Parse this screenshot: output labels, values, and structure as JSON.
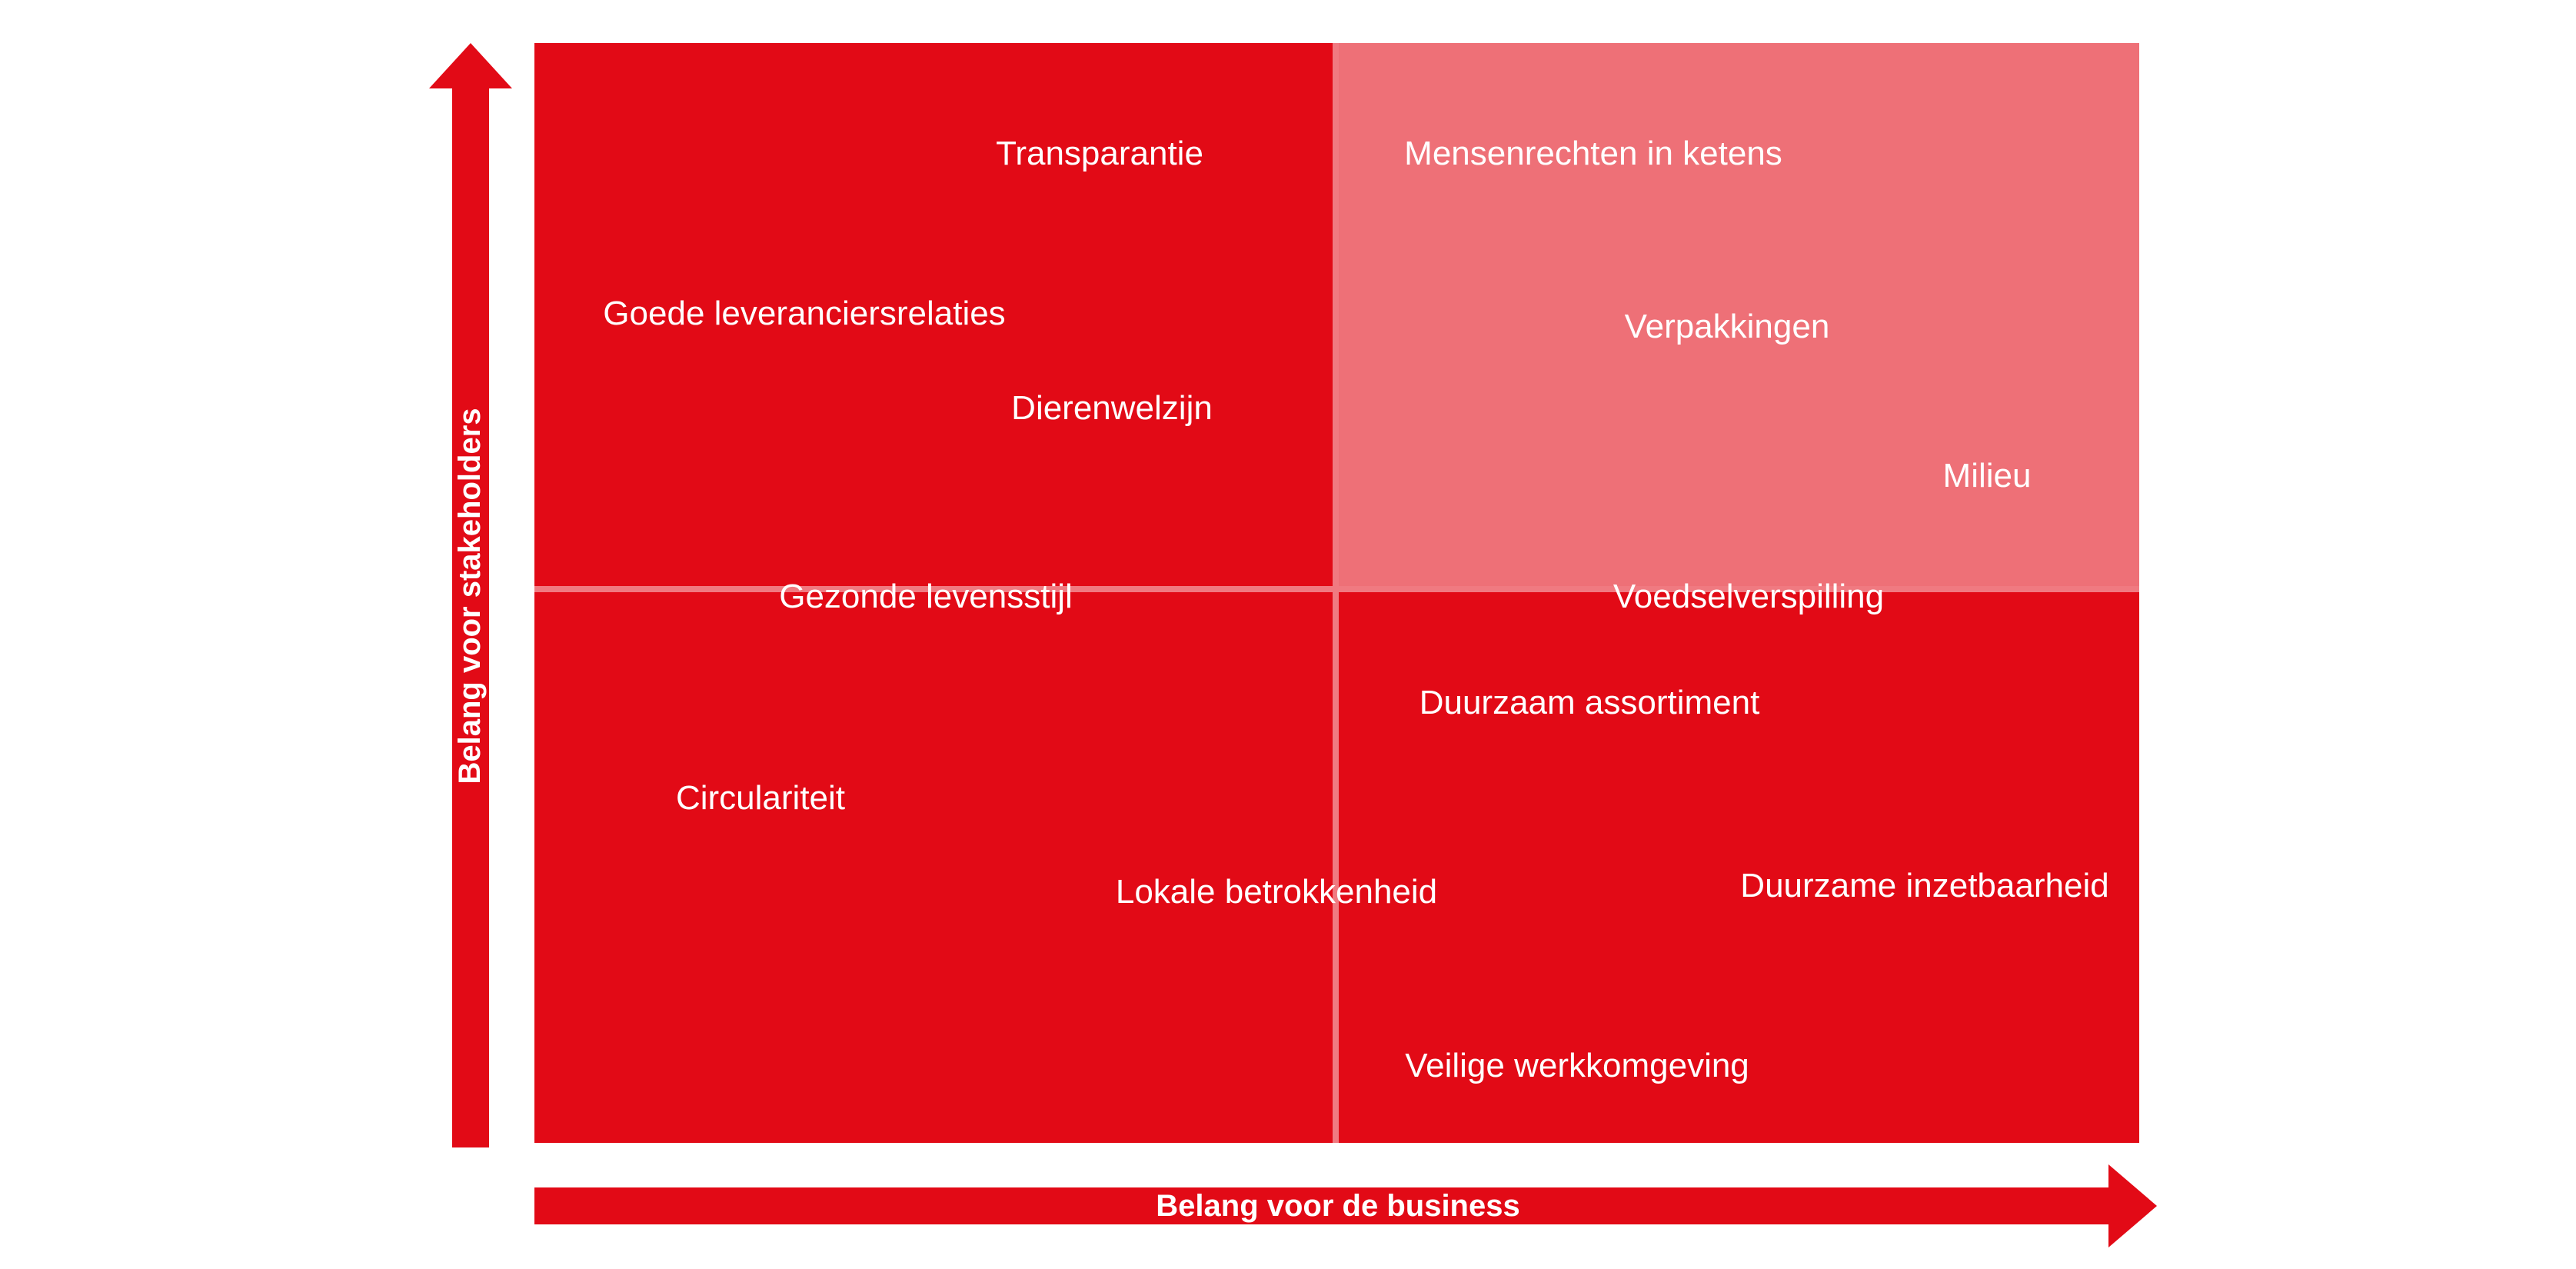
{
  "colors": {
    "red": "#e20a16",
    "light_red": "#ee7077",
    "divider": "#f07a81",
    "text": "#ffffff"
  },
  "axes": {
    "x_label": "Belang voor de business",
    "y_label": "Belang voor stakeholders"
  },
  "topics": [
    {
      "label": "Transparantie"
    },
    {
      "label": "Mensenrechten in ketens"
    },
    {
      "label": "Goede leveranciersrelaties"
    },
    {
      "label": "Verpakkingen"
    },
    {
      "label": "Dierenwelzijn"
    },
    {
      "label": "Milieu"
    },
    {
      "label": "Gezonde levensstijl"
    },
    {
      "label": "Voedselverspilling"
    },
    {
      "label": "Duurzaam assortiment"
    },
    {
      "label": "Circulariteit"
    },
    {
      "label": "Lokale betrokkenheid"
    },
    {
      "label": "Duurzame inzetbaarheid"
    },
    {
      "label": "Veilige werkkomgeving"
    }
  ]
}
